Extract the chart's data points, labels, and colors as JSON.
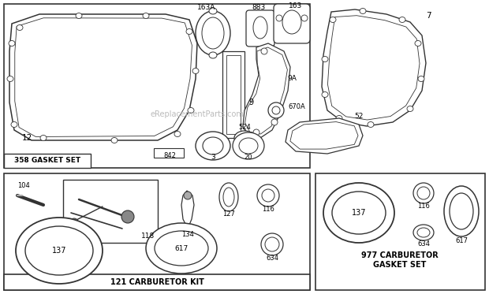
{
  "bg_color": "#ffffff",
  "ec": "#333333",
  "watermark": "eReplacementParts.com",
  "sections": {
    "gasket_set_label": "358 GASKET SET",
    "carb_kit_label": "121 CARBURETOR KIT",
    "carb_gasket_label": "977 CARBURETOR\nGASKET SET"
  }
}
